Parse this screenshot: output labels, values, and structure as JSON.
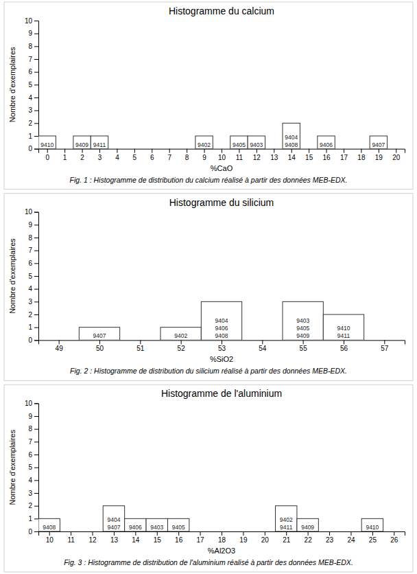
{
  "chart_data": [
    {
      "type": "bar",
      "title": "Histogramme du calcium",
      "xlabel": "%CaO",
      "ylabel": "Nombre d'exemplaires",
      "caption": "Fig. 1 : Histogramme de distribution du calcium réalisé à partir des données MEB-EDX.",
      "x": [
        0,
        2,
        3,
        9,
        11,
        12,
        14,
        16,
        19
      ],
      "values": [
        1,
        1,
        1,
        1,
        1,
        1,
        2,
        1,
        1
      ],
      "bar_labels": [
        [
          "9410"
        ],
        [
          "9409"
        ],
        [
          "9411"
        ],
        [
          "9402"
        ],
        [
          "9405"
        ],
        [
          "9403"
        ],
        [
          "9404",
          "9408"
        ],
        [
          "9406"
        ],
        [
          "9407"
        ]
      ],
      "color": "white",
      "xlim": [
        -0.5,
        20.5
      ],
      "ylim": [
        0,
        10
      ],
      "xticks": [
        0,
        1,
        2,
        3,
        4,
        5,
        6,
        7,
        8,
        9,
        10,
        11,
        12,
        13,
        14,
        15,
        16,
        17,
        18,
        19,
        20
      ],
      "yticks": [
        0,
        1,
        2,
        3,
        4,
        5,
        6,
        7,
        8,
        9,
        10
      ]
    },
    {
      "type": "bar",
      "title": "Histogramme du silicium",
      "xlabel": "%SiO2",
      "ylabel": "Nombre d'exemplaires",
      "caption": "Fig. 2 : Histogramme de distribution du silicium réalisé à partir des données MEB-EDX.",
      "x": [
        50,
        52,
        53,
        55,
        56
      ],
      "values": [
        1,
        1,
        3,
        3,
        2
      ],
      "bar_labels": [
        [
          "9407"
        ],
        [
          "9402"
        ],
        [
          "9404",
          "9406",
          "9408"
        ],
        [
          "9403",
          "9405",
          "9409"
        ],
        [
          "9410",
          "9411"
        ]
      ],
      "color": "white",
      "xlim": [
        48.5,
        57.5
      ],
      "ylim": [
        0,
        10
      ],
      "xticks": [
        49,
        50,
        51,
        52,
        53,
        54,
        55,
        56,
        57
      ],
      "yticks": [
        0,
        1,
        2,
        3,
        4,
        5,
        6,
        7,
        8,
        9,
        10
      ]
    },
    {
      "type": "bar",
      "title": "Histogramme de l'aluminium",
      "xlabel": "%Al2O3",
      "ylabel": "Nombre d'exemplaires",
      "caption": "Fig. 3 : Histogramme de distribution de l'aluminium réalisé à partir des données MEB-EDX.",
      "x": [
        10,
        13,
        14,
        15,
        16,
        21,
        22,
        25
      ],
      "values": [
        1,
        2,
        1,
        1,
        1,
        2,
        1,
        1
      ],
      "bar_labels": [
        [
          "9408"
        ],
        [
          "9404",
          "9407"
        ],
        [
          "9406"
        ],
        [
          "9403"
        ],
        [
          "9405"
        ],
        [
          "9402",
          "9411"
        ],
        [
          "9409"
        ],
        [
          "9410"
        ]
      ],
      "color": "white",
      "xlim": [
        9.5,
        26.5
      ],
      "ylim": [
        0,
        10
      ],
      "xticks": [
        10,
        11,
        12,
        13,
        14,
        15,
        16,
        17,
        18,
        19,
        20,
        21,
        22,
        23,
        24,
        25,
        26
      ],
      "yticks": [
        0,
        1,
        2,
        3,
        4,
        5,
        6,
        7,
        8,
        9,
        10
      ]
    }
  ]
}
